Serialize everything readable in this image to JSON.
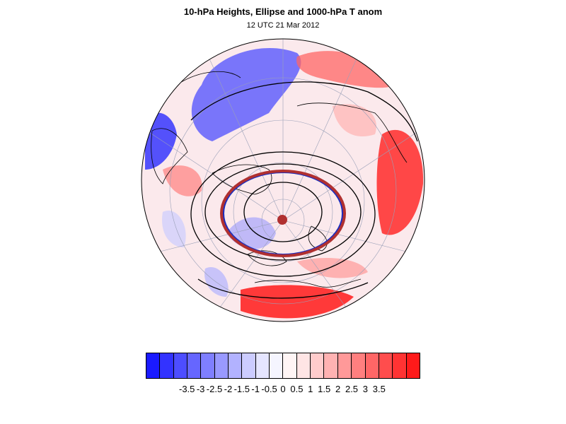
{
  "title": "10-hPa Heights, Ellipse and 1000-hPa T anom",
  "subtitle": "12 UTC 21 Mar 2012",
  "map": {
    "projection": "orthographic-polar",
    "field": "1000-hPa temperature anomaly",
    "contours": "10-hPa heights",
    "ellipse_colors": [
      "#1a2dbf",
      "#b03030"
    ],
    "center_marker_color": "#b03030",
    "coastline_color": "#000000"
  },
  "colorbar": {
    "colors": [
      "#1a1aff",
      "#3333ff",
      "#4d4dff",
      "#6666ff",
      "#7f7fff",
      "#9999ff",
      "#b2b2ff",
      "#ccccff",
      "#e5e5ff",
      "#f5f5ff",
      "#fff5f5",
      "#ffe5e5",
      "#ffcccc",
      "#ffb2b2",
      "#ff9999",
      "#ff7f7f",
      "#ff6666",
      "#ff4d4d",
      "#ff3333",
      "#ff1a1a"
    ],
    "labels": [
      "-3.5",
      "-3",
      "-2.5",
      "-2",
      "-1.5",
      "-1",
      "-0.5",
      "0",
      "0.5",
      "1",
      "1.5",
      "2",
      "2.5",
      "3",
      "3.5"
    ]
  }
}
